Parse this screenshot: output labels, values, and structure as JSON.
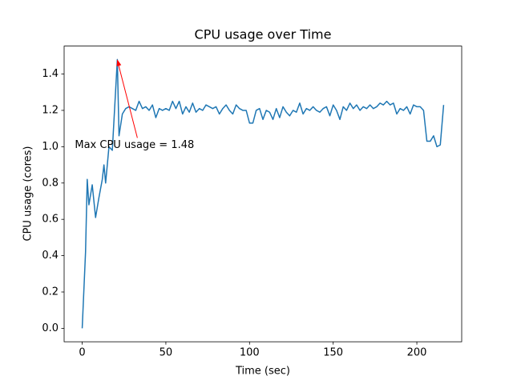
{
  "chart_data": {
    "type": "line",
    "title": "CPU usage over Time",
    "x_label": "Time (sec)",
    "y_label": "CPU usage (cores)",
    "color": "#1f77b4",
    "x": [
      0,
      2,
      3,
      4,
      6,
      8,
      10,
      12,
      13,
      14,
      16,
      18,
      21,
      22,
      24,
      26,
      28,
      30,
      32,
      34,
      36,
      38,
      40,
      42,
      44,
      46,
      48,
      50,
      52,
      54,
      56,
      58,
      60,
      62,
      64,
      66,
      68,
      70,
      72,
      74,
      76,
      78,
      80,
      82,
      84,
      86,
      88,
      90,
      92,
      94,
      96,
      98,
      100,
      102,
      104,
      106,
      108,
      110,
      112,
      114,
      116,
      118,
      120,
      122,
      124,
      126,
      128,
      130,
      132,
      134,
      136,
      138,
      140,
      142,
      144,
      146,
      148,
      150,
      152,
      154,
      156,
      158,
      160,
      162,
      164,
      166,
      168,
      170,
      172,
      174,
      176,
      178,
      180,
      182,
      184,
      186,
      188,
      190,
      192,
      194,
      196,
      198,
      200,
      202,
      204,
      206,
      208,
      210,
      212,
      214,
      216
    ],
    "values": [
      0,
      0.42,
      0.82,
      0.68,
      0.79,
      0.61,
      0.72,
      0.82,
      0.9,
      0.8,
      1.0,
      0.98,
      1.48,
      1.06,
      1.18,
      1.21,
      1.22,
      1.21,
      1.2,
      1.25,
      1.21,
      1.22,
      1.2,
      1.23,
      1.16,
      1.21,
      1.2,
      1.21,
      1.2,
      1.25,
      1.21,
      1.25,
      1.18,
      1.22,
      1.19,
      1.24,
      1.19,
      1.21,
      1.2,
      1.23,
      1.22,
      1.21,
      1.22,
      1.18,
      1.21,
      1.23,
      1.2,
      1.18,
      1.23,
      1.21,
      1.2,
      1.2,
      1.13,
      1.13,
      1.2,
      1.21,
      1.15,
      1.2,
      1.19,
      1.15,
      1.21,
      1.16,
      1.22,
      1.19,
      1.17,
      1.2,
      1.19,
      1.24,
      1.18,
      1.21,
      1.2,
      1.22,
      1.2,
      1.19,
      1.21,
      1.22,
      1.17,
      1.23,
      1.2,
      1.15,
      1.22,
      1.2,
      1.24,
      1.21,
      1.23,
      1.2,
      1.22,
      1.21,
      1.23,
      1.21,
      1.22,
      1.24,
      1.23,
      1.25,
      1.23,
      1.24,
      1.18,
      1.21,
      1.2,
      1.22,
      1.18,
      1.23,
      1.22,
      1.22,
      1.2,
      1.03,
      1.03,
      1.06,
      1.0,
      1.01,
      1.23
    ],
    "xlim": [
      -10.8,
      226.8
    ],
    "ylim": [
      -0.074,
      1.554
    ],
    "xticks": [
      0,
      50,
      100,
      150,
      200
    ],
    "yticks": [
      {
        "value": 0,
        "label": "0.0"
      },
      0.2,
      0.4,
      0.6,
      0.8,
      {
        "value": 1,
        "label": "1.0"
      },
      1.2,
      1.4
    ],
    "annotation": {
      "text": "Max CPU usage = 1.48",
      "x": 21,
      "y": 1.48,
      "color": "#ff0000"
    }
  }
}
